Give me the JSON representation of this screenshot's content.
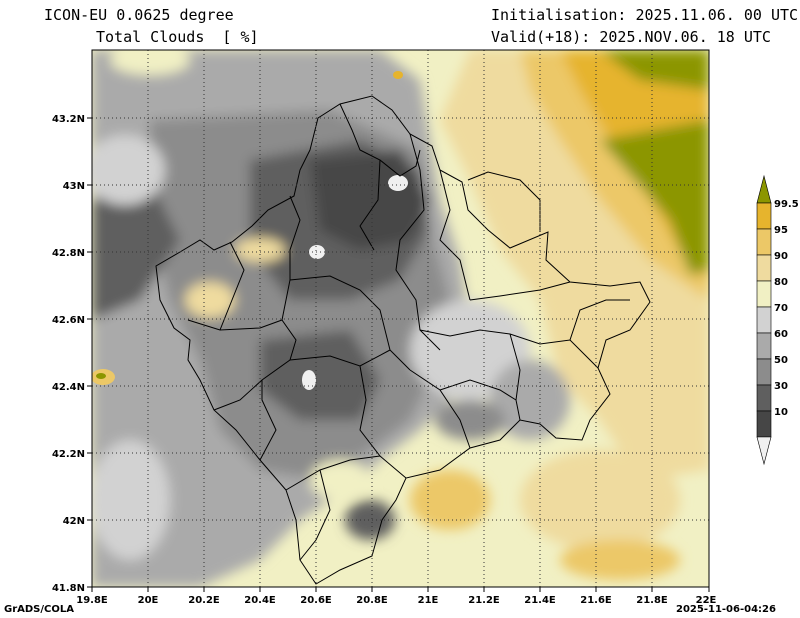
{
  "header": {
    "model": "ICON-EU 0.0625 degree",
    "variable": "Total Clouds  [ %]",
    "init": "Initialisation: 2025.11.06. 00 UTC",
    "valid": "Valid(+18): 2025.NOV.06. 18 UTC"
  },
  "axes": {
    "lon_labels": [
      "19.8E",
      "20E",
      "20.2E",
      "20.4E",
      "20.6E",
      "20.8E",
      "21E",
      "21.2E",
      "21.4E",
      "21.6E",
      "21.8E",
      "22E"
    ],
    "lat_labels": [
      "43.2N",
      "43N",
      "42.8N",
      "42.6N",
      "42.4N",
      "42.2N",
      "42N",
      "41.8N"
    ],
    "lon_range": [
      19.8,
      22.0
    ],
    "lat_range": [
      41.8,
      43.4
    ]
  },
  "legend": {
    "labels": [
      "99.5",
      "95",
      "90",
      "80",
      "70",
      "60",
      "50",
      "30",
      "10"
    ],
    "colors": [
      "#8c9600",
      "#e6b42d",
      "#ecc867",
      "#efdb9f",
      "#f1f0c4",
      "#d2d2d2",
      "#aaaaaa",
      "#8c8c8c",
      "#5f5f5f",
      "#464646",
      "#f0f0f0"
    ]
  },
  "footer": {
    "left": "GrADS/COLA",
    "right": "2025-11-06-04:26"
  }
}
